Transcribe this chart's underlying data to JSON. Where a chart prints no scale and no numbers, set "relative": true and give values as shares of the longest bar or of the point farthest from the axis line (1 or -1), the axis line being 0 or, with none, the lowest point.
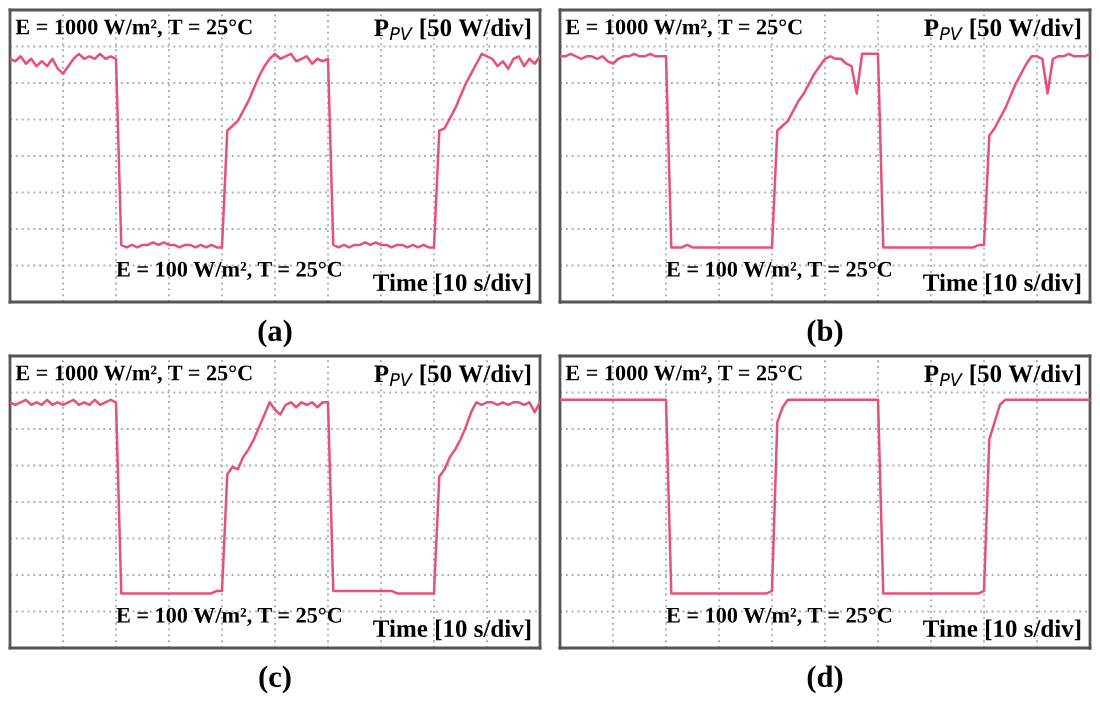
{
  "chart_data": [
    {
      "type": "line",
      "title": "(a)",
      "relative": true,
      "grid": true,
      "legend": false,
      "annotations": [
        "E = 1000 W/m², T = 25°C",
        "E = 100 W/m², T = 25°C",
        "P$_{PV}$ [50 W/div]",
        "Time [10 s/div]"
      ],
      "categories": [
        null,
        null,
        null,
        null,
        null,
        null,
        null,
        null,
        null,
        null,
        null,
        null,
        null,
        null,
        null,
        null,
        null,
        null,
        null,
        null,
        null,
        null,
        null,
        null,
        null,
        null,
        null,
        null,
        null,
        null,
        null,
        null,
        null,
        null,
        null,
        null,
        null,
        null,
        null,
        null,
        null,
        null,
        null,
        null,
        null,
        null,
        null,
        null,
        null,
        null,
        null,
        null,
        null,
        null,
        null,
        null,
        null,
        null,
        null,
        null,
        null,
        null,
        null,
        null,
        null,
        null,
        null,
        null,
        null,
        null,
        null,
        null,
        null,
        null,
        null,
        null,
        null,
        null,
        null,
        null,
        null,
        null,
        null,
        null,
        null,
        null,
        null,
        null,
        null,
        null,
        null,
        null,
        null,
        null,
        null,
        null,
        null,
        null,
        null,
        null,
        null
      ],
      "series": [
        {
          "color": "#e8507a",
          "values": [
            0.98,
            0.97,
            0.99,
            0.96,
            0.98,
            0.95,
            0.97,
            0.95,
            0.98,
            0.94,
            0.92,
            0.95,
            0.98,
            1.0,
            0.98,
            0.99,
            0.98,
            1.0,
            0.98,
            0.99,
            0.98,
            0.23,
            0.22,
            0.23,
            0.22,
            0.23,
            0.23,
            0.24,
            0.23,
            0.24,
            0.23,
            0.23,
            0.22,
            0.23,
            0.23,
            0.22,
            0.23,
            0.22,
            0.23,
            0.22,
            0.22,
            0.69,
            0.71,
            0.73,
            0.77,
            0.81,
            0.86,
            0.91,
            0.95,
            0.98,
            1.0,
            0.98,
            0.99,
            1.0,
            0.97,
            0.98,
            0.99,
            0.96,
            0.98,
            0.97,
            0.98,
            0.23,
            0.22,
            0.23,
            0.22,
            0.23,
            0.23,
            0.24,
            0.23,
            0.24,
            0.23,
            0.23,
            0.22,
            0.23,
            0.23,
            0.22,
            0.23,
            0.22,
            0.23,
            0.22,
            0.22,
            0.69,
            0.7,
            0.74,
            0.78,
            0.83,
            0.88,
            0.92,
            0.96,
            1.0,
            0.99,
            0.98,
            0.95,
            0.97,
            0.94,
            0.98,
            0.99,
            0.95,
            0.98,
            0.96,
            0.99
          ]
        }
      ]
    },
    {
      "type": "line",
      "title": "(b)",
      "relative": true,
      "grid": true,
      "legend": false,
      "annotations": [
        "E = 1000 W/m², T = 25°C",
        "E = 100 W/m², T = 25°C",
        "P$_{PV}$ [50 W/div]",
        "Time [10 s/div]"
      ],
      "categories": [
        null,
        null,
        null,
        null,
        null,
        null,
        null,
        null,
        null,
        null,
        null,
        null,
        null,
        null,
        null,
        null,
        null,
        null,
        null,
        null,
        null,
        null,
        null,
        null,
        null,
        null,
        null,
        null,
        null,
        null,
        null,
        null,
        null,
        null,
        null,
        null,
        null,
        null,
        null,
        null,
        null,
        null,
        null,
        null,
        null,
        null,
        null,
        null,
        null,
        null,
        null,
        null,
        null,
        null,
        null,
        null,
        null,
        null,
        null,
        null,
        null,
        null,
        null,
        null,
        null,
        null,
        null,
        null,
        null,
        null,
        null,
        null,
        null,
        null,
        null,
        null,
        null,
        null,
        null,
        null,
        null,
        null,
        null,
        null,
        null,
        null,
        null,
        null,
        null,
        null,
        null,
        null,
        null,
        null,
        null,
        null,
        null,
        null,
        null,
        null,
        null
      ],
      "series": [
        {
          "color": "#e8507a",
          "values": [
            0.99,
            0.99,
            1.0,
            0.99,
            0.98,
            0.99,
            0.99,
            0.98,
            0.99,
            0.97,
            0.96,
            0.98,
            0.99,
            0.99,
            1.0,
            0.99,
            0.99,
            1.0,
            0.99,
            0.99,
            0.99,
            0.22,
            0.22,
            0.22,
            0.23,
            0.22,
            0.22,
            0.22,
            0.22,
            0.22,
            0.22,
            0.22,
            0.22,
            0.22,
            0.22,
            0.22,
            0.22,
            0.22,
            0.22,
            0.22,
            0.22,
            0.69,
            0.71,
            0.73,
            0.77,
            0.81,
            0.84,
            0.88,
            0.92,
            0.95,
            0.98,
            0.99,
            0.98,
            0.98,
            0.96,
            0.95,
            0.84,
            1.0,
            1.0,
            1.0,
            1.0,
            0.22,
            0.22,
            0.22,
            0.22,
            0.22,
            0.22,
            0.22,
            0.22,
            0.22,
            0.22,
            0.22,
            0.22,
            0.22,
            0.22,
            0.22,
            0.22,
            0.22,
            0.22,
            0.23,
            0.23,
            0.67,
            0.7,
            0.74,
            0.78,
            0.83,
            0.88,
            0.92,
            0.96,
            0.99,
            0.99,
            0.98,
            0.84,
            0.98,
            0.99,
            0.99,
            1.0,
            0.99,
            0.99,
            0.99,
            1.0
          ]
        }
      ]
    },
    {
      "type": "line",
      "title": "(c)",
      "relative": true,
      "grid": true,
      "legend": false,
      "annotations": [
        "E = 1000 W/m², T = 25°C",
        "E = 100 W/m², T = 25°C",
        "P$_{PV}$ [50 W/div]",
        "Time [10 s/div]"
      ],
      "categories": [
        null,
        null,
        null,
        null,
        null,
        null,
        null,
        null,
        null,
        null,
        null,
        null,
        null,
        null,
        null,
        null,
        null,
        null,
        null,
        null,
        null,
        null,
        null,
        null,
        null,
        null,
        null,
        null,
        null,
        null,
        null,
        null,
        null,
        null,
        null,
        null,
        null,
        null,
        null,
        null,
        null,
        null,
        null,
        null,
        null,
        null,
        null,
        null,
        null,
        null,
        null,
        null,
        null,
        null,
        null,
        null,
        null,
        null,
        null,
        null,
        null,
        null,
        null,
        null,
        null,
        null,
        null,
        null,
        null,
        null,
        null,
        null,
        null,
        null,
        null,
        null,
        null,
        null,
        null,
        null,
        null,
        null,
        null,
        null,
        null,
        null,
        null,
        null,
        null,
        null,
        null,
        null,
        null,
        null,
        null,
        null,
        null,
        null,
        null,
        null,
        null
      ],
      "series": [
        {
          "color": "#e8507a",
          "values": [
            0.99,
            0.98,
            0.99,
            1.0,
            0.98,
            0.99,
            0.98,
            1.0,
            0.98,
            0.99,
            0.98,
            0.99,
            1.0,
            0.98,
            0.99,
            0.98,
            1.0,
            0.98,
            0.99,
            1.0,
            0.99,
            0.22,
            0.22,
            0.22,
            0.22,
            0.22,
            0.22,
            0.22,
            0.22,
            0.22,
            0.22,
            0.22,
            0.22,
            0.22,
            0.22,
            0.22,
            0.22,
            0.22,
            0.22,
            0.23,
            0.23,
            0.7,
            0.73,
            0.72,
            0.77,
            0.8,
            0.84,
            0.89,
            0.94,
            0.99,
            0.96,
            0.94,
            0.98,
            0.99,
            0.97,
            0.99,
            0.98,
            0.99,
            0.97,
            0.99,
            0.99,
            0.23,
            0.23,
            0.23,
            0.23,
            0.23,
            0.23,
            0.23,
            0.23,
            0.23,
            0.23,
            0.23,
            0.23,
            0.22,
            0.22,
            0.22,
            0.22,
            0.22,
            0.22,
            0.22,
            0.22,
            0.69,
            0.72,
            0.77,
            0.8,
            0.84,
            0.89,
            0.95,
            0.99,
            0.98,
            0.99,
            0.99,
            0.98,
            0.99,
            0.98,
            0.99,
            0.99,
            0.98,
            0.99,
            0.95,
            0.99
          ]
        }
      ]
    },
    {
      "type": "line",
      "title": "(d)",
      "relative": true,
      "grid": true,
      "legend": false,
      "annotations": [
        "E = 1000 W/m², T = 25°C",
        "E = 100 W/m², T = 25°C",
        "P$_{PV}$ [50 W/div]",
        "Time [10 s/div]"
      ],
      "categories": [
        null,
        null,
        null,
        null,
        null,
        null,
        null,
        null,
        null,
        null,
        null,
        null,
        null,
        null,
        null,
        null,
        null,
        null,
        null,
        null,
        null,
        null,
        null,
        null,
        null,
        null,
        null,
        null,
        null,
        null,
        null,
        null,
        null,
        null,
        null,
        null,
        null,
        null,
        null,
        null,
        null,
        null,
        null,
        null,
        null,
        null,
        null,
        null,
        null,
        null,
        null,
        null,
        null,
        null,
        null,
        null,
        null,
        null,
        null,
        null,
        null,
        null,
        null,
        null,
        null,
        null,
        null,
        null,
        null,
        null,
        null,
        null,
        null,
        null,
        null,
        null,
        null,
        null,
        null,
        null,
        null,
        null,
        null,
        null,
        null,
        null,
        null,
        null,
        null,
        null,
        null,
        null,
        null,
        null,
        null,
        null,
        null,
        null,
        null,
        null,
        null
      ],
      "series": [
        {
          "color": "#e8507a",
          "values": [
            1.0,
            1.0,
            1.0,
            1.0,
            1.0,
            1.0,
            1.0,
            1.0,
            1.0,
            1.0,
            1.0,
            1.0,
            1.0,
            1.0,
            1.0,
            1.0,
            1.0,
            1.0,
            1.0,
            1.0,
            1.0,
            0.22,
            0.22,
            0.22,
            0.22,
            0.22,
            0.22,
            0.22,
            0.22,
            0.22,
            0.22,
            0.22,
            0.22,
            0.22,
            0.22,
            0.22,
            0.22,
            0.22,
            0.22,
            0.22,
            0.23,
            0.91,
            0.97,
            1.0,
            1.0,
            1.0,
            1.0,
            1.0,
            1.0,
            1.0,
            1.0,
            1.0,
            1.0,
            1.0,
            1.0,
            1.0,
            1.0,
            1.0,
            1.0,
            1.0,
            1.0,
            0.22,
            0.22,
            0.22,
            0.22,
            0.22,
            0.22,
            0.22,
            0.22,
            0.22,
            0.22,
            0.22,
            0.22,
            0.22,
            0.22,
            0.22,
            0.22,
            0.22,
            0.22,
            0.22,
            0.23,
            0.84,
            0.91,
            0.98,
            1.0,
            1.0,
            1.0,
            1.0,
            1.0,
            1.0,
            1.0,
            1.0,
            1.0,
            1.0,
            1.0,
            1.0,
            1.0,
            1.0,
            1.0,
            1.0,
            1.0
          ]
        }
      ]
    }
  ]
}
